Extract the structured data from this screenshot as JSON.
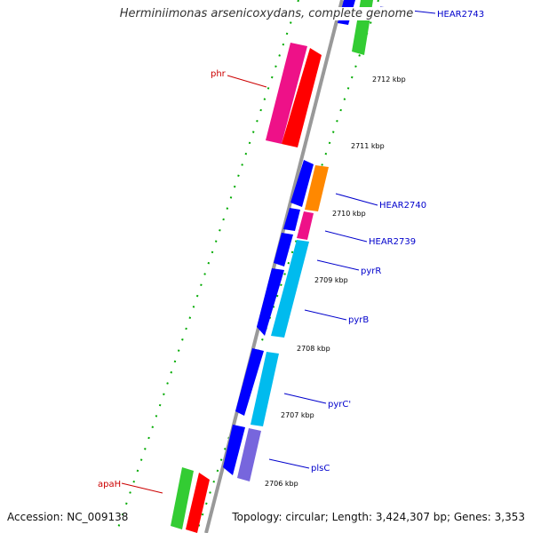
{
  "title": "Herminiimonas arsenicoxydans, complete genome",
  "accession": "Accession: NC_009138",
  "topology": "Topology: circular; Length: 3,424,307 bp; Genes: 3,353",
  "colors": {
    "backbone": "#999999",
    "ruler": "#00aa00",
    "forward_label": "#0000cc",
    "reverse_label": "#cc0000",
    "blue": "#0000ff",
    "green": "#33cc33",
    "red": "#ff0000",
    "pink": "#ee1188",
    "orange": "#ff8800",
    "cyan": "#00bbee",
    "purple": "#7766dd"
  },
  "ticks": [
    "2712 kbp",
    "2711 kbp",
    "2710 kbp",
    "2709 kbp",
    "2708 kbp",
    "2707 kbp",
    "2706 kbp"
  ],
  "gene_labels": {
    "hear2743": "HEAR2743",
    "phr": "phr",
    "hear2740": "HEAR2740",
    "hear2739": "HEAR2739",
    "pyrR": "pyrR",
    "pyrB": "pyrB",
    "pyrC": "pyrC'",
    "plsC": "plsC",
    "apaH": "apaH"
  }
}
